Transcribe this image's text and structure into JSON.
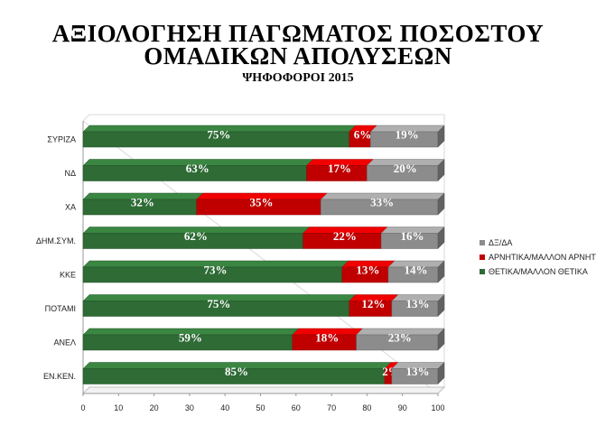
{
  "title_line1": "ΑΞΙΟΛΟΓΗΣΗ ΠΑΓΩΜΑΤΟΣ ΠΟΣΟΣΤΟΥ",
  "title_line2": "ΟΜΑΔΙΚΩΝ ΑΠΟΛΥΣΕΩΝ",
  "subtitle": "ΨΗΦΟΦΟΡΟΙ 2015",
  "chart_data": {
    "type": "bar",
    "orientation": "horizontal",
    "stacked": "percent",
    "title": "ΑΞΙΟΛΟΓΗΣΗ ΠΑΓΩΜΑΤΟΣ ΠΟΣΟΣΤΟΥ ΟΜΑΔΙΚΩΝ ΑΠΟΛΥΣΕΩΝ",
    "subtitle": "ΨΗΦΟΦΟΡΟΙ 2015",
    "categories": [
      "ΣΥΡΙΖΑ",
      "ΝΔ",
      "ΧΑ",
      "ΔΗΜ.ΣΥΜ.",
      "ΚΚΕ",
      "ΠΟΤΑΜΙ",
      "ΑΝΕΛ",
      "ΕΝ.ΚΕΝ."
    ],
    "series": [
      {
        "name": "ΘΕΤΙΚΑ/ΜΑΛΛΟΝ ΘΕΤΙΚΑ",
        "color": "#2e6b35",
        "values": [
          75,
          63,
          32,
          62,
          73,
          75,
          59,
          85
        ]
      },
      {
        "name": "ΑΡΝΗΤΙΚΑ/ΜΑΛΛΟΝ ΑΡΝΗΤΙ",
        "color": "#c00000",
        "values": [
          6,
          17,
          35,
          22,
          13,
          12,
          18,
          2
        ]
      },
      {
        "name": "ΔΞ/ΔΑ",
        "color": "#8c8c8c",
        "values": [
          19,
          20,
          33,
          16,
          14,
          13,
          23,
          13
        ]
      }
    ],
    "value_labels": [
      [
        "75%",
        "6%",
        "19%"
      ],
      [
        "63%",
        "17%",
        "20%"
      ],
      [
        "32%",
        "35%",
        "33%"
      ],
      [
        "62%",
        "22%",
        "16%"
      ],
      [
        "73%",
        "13%",
        "14%"
      ],
      [
        "75%",
        "12%",
        "13%"
      ],
      [
        "59%",
        "18%",
        "23%"
      ],
      [
        "85%",
        "2%",
        "13%"
      ]
    ],
    "xlim": [
      0,
      100
    ],
    "xticks": [
      "0",
      "10",
      "20",
      "30",
      "40",
      "50",
      "60",
      "70",
      "80",
      "90",
      "100"
    ],
    "legend": {
      "position": "right",
      "items": [
        "ΔΞ/ΔΑ",
        "ΑΡΝΗΤΙΚΑ/ΜΑΛΛΟΝ ΑΡΝΗΤΙ",
        "ΘΕΤΙΚΑ/ΜΑΛΛΟΝ ΘΕΤΙΚΑ"
      ]
    },
    "grid": false,
    "style": "3d"
  }
}
